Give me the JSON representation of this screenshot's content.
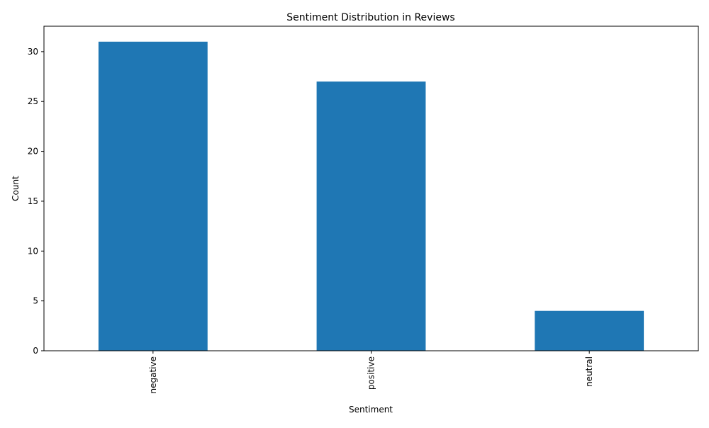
{
  "chart_data": {
    "type": "bar",
    "title": "Sentiment Distribution in Reviews",
    "xlabel": "Sentiment",
    "ylabel": "Count",
    "categories": [
      "negative",
      "positive",
      "neutral"
    ],
    "values": [
      31,
      27,
      4
    ],
    "ylim": [
      0,
      32.55
    ],
    "yticks": [
      0,
      5,
      10,
      15,
      20,
      25,
      30
    ],
    "x_tick_rotation": "vertical",
    "grid": false,
    "legend": "none",
    "bar_color": "#1f77b4"
  }
}
